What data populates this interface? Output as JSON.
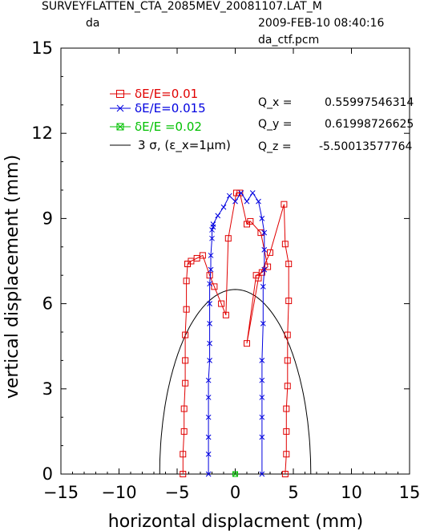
{
  "header": {
    "lattice": "SURVEYFLATTEN_CTA_2085MEV_20081107.LAT_M",
    "mode": "da",
    "datetime": "2009-FEB-10 08:40:16",
    "file": "da_ctf.pcm"
  },
  "tunes": [
    {
      "label": "Q_x =",
      "value": "0.55997546314"
    },
    {
      "label": "Q_y =",
      "value": "0.61998726625"
    },
    {
      "label": "Q_z =",
      "value": "-5.50013577764"
    }
  ],
  "colors": {
    "red": "#e00000",
    "blue": "#0000e0",
    "green": "#00c000",
    "black": "#000000"
  },
  "chart_data": {
    "type": "line",
    "xlabel": "horizontal displacment (mm)",
    "ylabel": "vertical displacement (mm)",
    "xlim": [
      -15,
      15
    ],
    "ylim": [
      0,
      15
    ],
    "xticks": [
      -15,
      -10,
      -5,
      0,
      5,
      10,
      15
    ],
    "yticks": [
      0,
      3,
      6,
      9,
      12,
      15
    ],
    "grid": false,
    "legend_position": "top-left",
    "series": [
      {
        "name": "δE/E=0.01",
        "color": "red",
        "marker": "square",
        "x": [
          -4.5,
          -4.5,
          -4.4,
          -4.4,
          -4.3,
          -4.3,
          -4.3,
          -4.2,
          -4.2,
          -4.1,
          -4.1,
          -3.8,
          -3.3,
          -2.8,
          -2.2,
          -1.8,
          -1.2,
          -0.8,
          -0.6,
          0.1,
          0.4,
          1.0,
          1.3,
          2.2,
          2.8,
          2.3,
          1.8,
          1.0,
          2.0,
          3.0,
          4.2,
          4.3,
          4.6,
          4.6,
          4.5,
          4.5,
          4.5,
          4.4,
          4.4,
          4.4,
          4.3
        ],
        "y": [
          0,
          0.7,
          1.5,
          2.3,
          3.2,
          4.0,
          4.9,
          5.8,
          6.8,
          7.4,
          7.4,
          7.5,
          7.6,
          7.7,
          7.0,
          6.6,
          6.0,
          5.6,
          8.3,
          9.9,
          9.9,
          8.8,
          8.9,
          8.5,
          7.3,
          7.1,
          7.0,
          4.6,
          6.9,
          7.8,
          9.5,
          8.1,
          7.4,
          6.1,
          4.9,
          4.0,
          3.1,
          2.3,
          1.5,
          0.7,
          0
        ]
      },
      {
        "name": "δE/E=0.015",
        "color": "blue",
        "marker": "x",
        "x": [
          -2.3,
          -2.3,
          -2.3,
          -2.3,
          -2.3,
          -2.3,
          -2.2,
          -2.2,
          -2.2,
          -2.2,
          -2.2,
          -2.1,
          -2.1,
          -2.0,
          -2.0,
          -1.9,
          -1.9,
          -1.5,
          -1.0,
          -0.5,
          0.0,
          0.5,
          1.0,
          1.5,
          2.0,
          2.3,
          2.5,
          2.5,
          2.5,
          2.4,
          2.4,
          2.3,
          2.3,
          2.3,
          2.3,
          2.3,
          2.3
        ],
        "y": [
          0,
          0.7,
          1.3,
          2.0,
          2.7,
          3.3,
          4.0,
          4.6,
          5.3,
          6.0,
          6.7,
          7.2,
          7.7,
          8.3,
          8.6,
          8.7,
          8.8,
          9.1,
          9.4,
          9.8,
          9.6,
          9.9,
          9.6,
          9.9,
          9.6,
          9.0,
          8.5,
          7.9,
          7.2,
          6.6,
          5.3,
          4.0,
          3.3,
          2.7,
          2.0,
          1.3,
          0
        ]
      },
      {
        "name": "δE/E =0.02",
        "color": "green",
        "marker": "square-x",
        "x": [
          0.0
        ],
        "y": [
          0.0
        ]
      }
    ],
    "envelope": {
      "name": "3 σ, (ε_x=1μm)",
      "color": "black",
      "x_half_width": 6.5,
      "y_max": 6.5
    }
  }
}
